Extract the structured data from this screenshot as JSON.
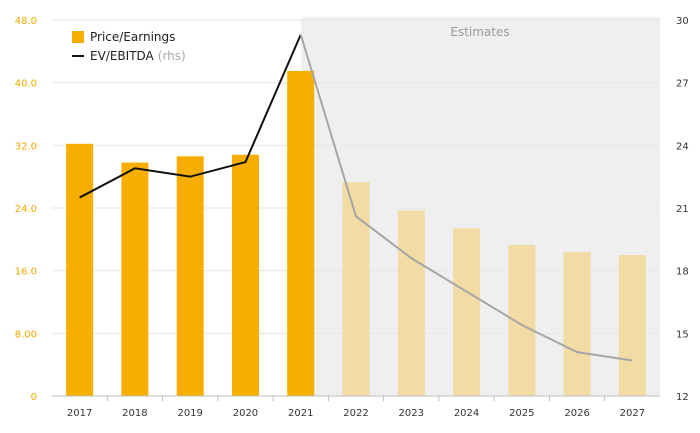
{
  "chart_data": {
    "type": "bar",
    "categories": [
      "2017",
      "2018",
      "2019",
      "2020",
      "2021",
      "2022",
      "2023",
      "2024",
      "2025",
      "2026",
      "2027"
    ],
    "series": [
      {
        "name": "Price/Earnings",
        "type": "bar",
        "axis": "left",
        "values": [
          32.2,
          29.8,
          30.6,
          30.8,
          41.5,
          27.3,
          23.7,
          21.4,
          19.3,
          18.4,
          18.0
        ],
        "estimated_from": "2022"
      },
      {
        "name": "EV/EBITDA",
        "name_suffix": "(rhs)",
        "type": "line",
        "axis": "right",
        "values": [
          21.5,
          22.9,
          22.5,
          23.2,
          29.3,
          20.6,
          18.6,
          17.0,
          15.4,
          14.1,
          13.7
        ],
        "estimated_from": "2022"
      }
    ],
    "y_left": {
      "min": 0,
      "max": 48,
      "ticks": [
        "0",
        "8.00",
        "16.0",
        "24.0",
        "32.0",
        "40.0",
        "48.0"
      ],
      "values": [
        0,
        8,
        16,
        24,
        32,
        40,
        48
      ]
    },
    "y_right": {
      "min": 12,
      "max": 30,
      "ticks": [
        "12",
        "15",
        "18",
        "21",
        "24",
        "27",
        "30"
      ],
      "values": [
        12,
        15,
        18,
        21,
        24,
        27,
        30
      ]
    },
    "estimates_label": "Estimates",
    "grid": true,
    "legend_position": "top-left",
    "colors": {
      "bar_actual": "#f7ae00",
      "bar_estimate": "#f2dba4",
      "line_actual": "#111111",
      "line_estimate": "#a6a6a6",
      "estimates_bg": "#efefef",
      "left_tick": "#f0a800"
    }
  }
}
